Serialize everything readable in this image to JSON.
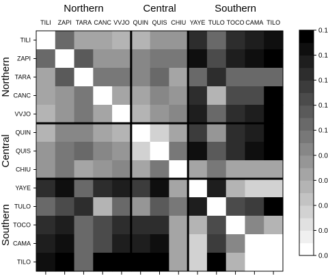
{
  "chart_data": {
    "type": "heatmap",
    "labels": [
      "TILI",
      "ZAPI",
      "TARA",
      "CANC",
      "VVJO",
      "QUIN",
      "QUIS",
      "CHIU",
      "YAYE",
      "TULO",
      "TOCO",
      "CAMA",
      "TILO"
    ],
    "groups": [
      {
        "name": "Northern",
        "start": 0,
        "end": 4
      },
      {
        "name": "Central",
        "start": 5,
        "end": 7
      },
      {
        "name": "Southern",
        "start": 8,
        "end": 12
      }
    ],
    "values": [
      [
        0.0,
        0.1,
        0.06,
        0.06,
        0.05,
        0.05,
        0.07,
        0.07,
        0.14,
        0.1,
        0.14,
        0.15,
        0.16
      ],
      [
        0.1,
        0.0,
        0.11,
        0.07,
        0.07,
        0.08,
        0.09,
        0.09,
        0.16,
        0.12,
        0.15,
        0.16,
        0.17
      ],
      [
        0.06,
        0.11,
        0.0,
        0.09,
        0.09,
        0.08,
        0.1,
        0.06,
        0.1,
        0.14,
        0.1,
        0.1,
        0.1
      ],
      [
        0.06,
        0.07,
        0.09,
        0.0,
        0.06,
        0.06,
        0.08,
        0.07,
        0.14,
        0.05,
        0.12,
        0.12,
        0.17
      ],
      [
        0.05,
        0.07,
        0.09,
        0.06,
        0.0,
        0.05,
        0.07,
        0.08,
        0.15,
        0.1,
        0.14,
        0.15,
        0.17
      ],
      [
        0.05,
        0.08,
        0.08,
        0.06,
        0.05,
        0.0,
        0.03,
        0.06,
        0.13,
        0.07,
        0.14,
        0.15,
        0.17
      ],
      [
        0.07,
        0.09,
        0.1,
        0.08,
        0.07,
        0.03,
        0.0,
        0.09,
        0.16,
        0.11,
        0.14,
        0.16,
        0.17
      ],
      [
        0.07,
        0.09,
        0.06,
        0.07,
        0.08,
        0.06,
        0.09,
        0.0,
        0.06,
        0.09,
        0.06,
        0.06,
        0.06
      ],
      [
        0.14,
        0.16,
        0.1,
        0.14,
        0.15,
        0.13,
        0.16,
        0.06,
        0.0,
        0.15,
        0.05,
        0.03,
        0.03
      ],
      [
        0.1,
        0.12,
        0.14,
        0.05,
        0.1,
        0.07,
        0.11,
        0.09,
        0.15,
        0.0,
        0.12,
        0.13,
        0.18
      ],
      [
        0.14,
        0.15,
        0.1,
        0.12,
        0.14,
        0.14,
        0.14,
        0.06,
        0.05,
        0.12,
        0.0,
        0.08,
        0.05
      ],
      [
        0.15,
        0.16,
        0.1,
        0.12,
        0.15,
        0.15,
        0.16,
        0.06,
        0.03,
        0.13,
        0.08,
        0.0,
        0.0
      ],
      [
        0.16,
        0.17,
        0.1,
        0.17,
        0.17,
        0.17,
        0.17,
        0.06,
        0.03,
        0.18,
        0.05,
        0.0,
        0.0
      ]
    ],
    "colorbar": {
      "min": 0.0,
      "max": 0.18,
      "step": 0.01,
      "tick_labels": [
        "0.00",
        "0.02",
        "0.04",
        "0.06",
        "0.08",
        "0.10",
        "0.12",
        "0.14",
        "0.16",
        "0.18"
      ],
      "low_color": "#ffffff",
      "high_color": "#000000"
    },
    "legend_position": "right",
    "grid": false
  }
}
